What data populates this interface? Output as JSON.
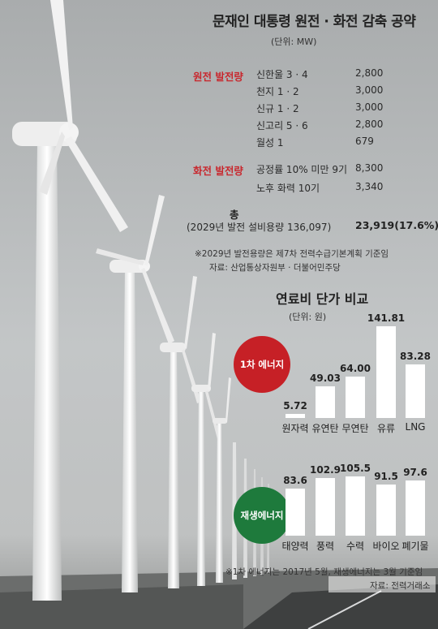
{
  "title": "문재인 대통령 원전 · 화전 감축 공약",
  "unit": "(단위: MW)",
  "nuclear": {
    "label": "원전 발전량",
    "rows": [
      {
        "name": "신한울 3 · 4",
        "value": "2,800"
      },
      {
        "name": "천지 1 · 2",
        "value": "3,000"
      },
      {
        "name": "신규 1 · 2",
        "value": "3,000"
      },
      {
        "name": "신고리 5 · 6",
        "value": "2,800"
      },
      {
        "name": "월성 1",
        "value": "679"
      }
    ]
  },
  "thermal": {
    "label": "화전 발전량",
    "rows": [
      {
        "name": "공정률 10% 미만 9기",
        "value": "8,300"
      },
      {
        "name": "노후 화력 10기",
        "value": "3,340"
      }
    ]
  },
  "total": {
    "label": "총",
    "sublabel": "(2029년 발전 설비용량 136,097)",
    "value": "23,919(17.6%)"
  },
  "notes": {
    "line1": "※2029년 발전용량은 제7차 전력수급기본계획 기준임",
    "line2": "자료: 산업통상자원부 · 더불어민주당"
  },
  "fuel": {
    "title": "연료비 단가 비교",
    "unit": "(단위: 원)",
    "primary_label": "1차 에너지",
    "renewable_label": "재생에너지",
    "note1": "※1차 에너지는 2017년 5월, 재생에너지는 3월 기준임",
    "note2": "자료: 전력거래소"
  },
  "chart_data": [
    {
      "type": "bar",
      "title": "1차 에너지",
      "categories": [
        "원자력",
        "유연탄",
        "무연탄",
        "유류",
        "LNG"
      ],
      "values": [
        5.72,
        49.03,
        64.0,
        141.81,
        83.28
      ],
      "value_labels": [
        "5.72",
        "49.03",
        "64.00",
        "141.81",
        "83.28"
      ],
      "ylim": [
        0,
        141.81
      ]
    },
    {
      "type": "bar",
      "title": "재생에너지",
      "categories": [
        "태양력",
        "풍력",
        "수력",
        "바이오",
        "폐기물"
      ],
      "values": [
        83.6,
        102.9,
        105.5,
        91.5,
        97.6
      ],
      "value_labels": [
        "83.6",
        "102.9",
        "105.5",
        "91.5",
        "97.6"
      ],
      "ylim": [
        0,
        105.5
      ]
    }
  ],
  "colors": {
    "accent_red": "#c62026",
    "accent_green": "#1e7a3c",
    "bar": "#ffffff"
  }
}
